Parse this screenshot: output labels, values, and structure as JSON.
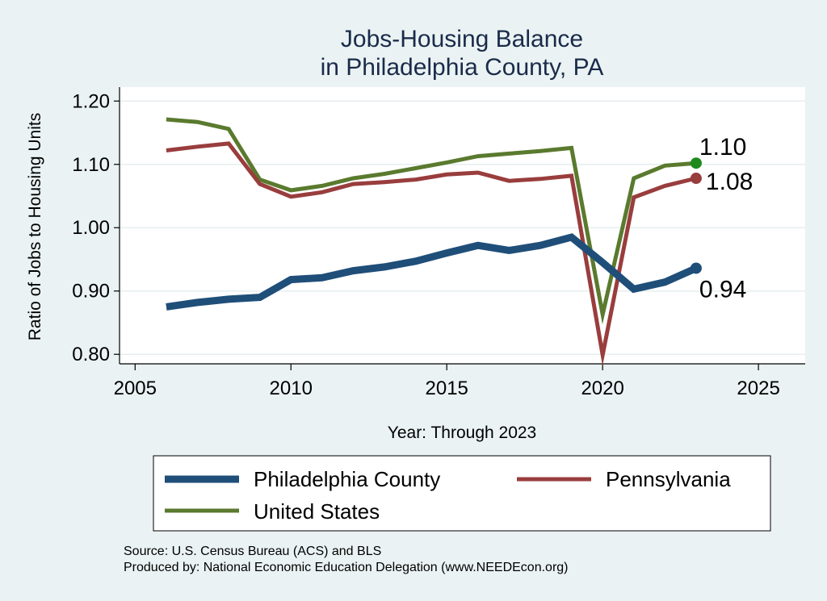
{
  "chart_data": {
    "type": "line",
    "title": [
      "Jobs-Housing Balance",
      "in Philadelphia County, PA"
    ],
    "xlabel": "Year: Through 2023",
    "ylabel": "Ratio of Jobs to Housing Units",
    "xlim": [
      2004.5,
      2026.5
    ],
    "ylim": [
      0.785,
      1.222
    ],
    "xticks": [
      2005,
      2010,
      2015,
      2020,
      2025
    ],
    "yticks": [
      0.8,
      0.9,
      1.0,
      1.1,
      1.2
    ],
    "ytick_labels": [
      "0.80",
      "0.90",
      "1.00",
      "1.10",
      "1.20"
    ],
    "grid": true,
    "x": [
      2006,
      2007,
      2008,
      2009,
      2010,
      2011,
      2012,
      2013,
      2014,
      2015,
      2016,
      2017,
      2018,
      2019,
      2020,
      2021,
      2022,
      2023
    ],
    "series": [
      {
        "name": "Philadelphia County",
        "color": "#1f4e79",
        "values": [
          0.875,
          0.882,
          0.887,
          0.89,
          0.918,
          0.921,
          0.932,
          0.938,
          0.947,
          0.96,
          0.972,
          0.964,
          0.972,
          0.985,
          0.945,
          0.903,
          0.914,
          0.936
        ],
        "end_label": "0.94"
      },
      {
        "name": "Pennsylvania",
        "color": "#993d3d",
        "values": [
          1.122,
          1.128,
          1.133,
          1.069,
          1.049,
          1.056,
          1.069,
          1.072,
          1.076,
          1.084,
          1.087,
          1.074,
          1.077,
          1.082,
          0.799,
          1.048,
          1.066,
          1.078
        ],
        "end_label": "1.08"
      },
      {
        "name": "United States",
        "color": "#5a7a2e",
        "values": [
          1.171,
          1.167,
          1.156,
          1.076,
          1.059,
          1.066,
          1.078,
          1.085,
          1.094,
          1.103,
          1.113,
          1.117,
          1.121,
          1.126,
          0.863,
          1.078,
          1.098,
          1.102
        ],
        "end_label": "1.10",
        "end_marker_color": "#1e8a1e"
      }
    ],
    "legend": {
      "position": "bottom",
      "entries": [
        "Philadelphia County",
        "Pennsylvania",
        "United States"
      ]
    },
    "notes": [
      "Source: U.S. Census Bureau (ACS) and BLS",
      "Produced by: National Economic Education Delegation (www.NEEDEcon.org)"
    ]
  }
}
